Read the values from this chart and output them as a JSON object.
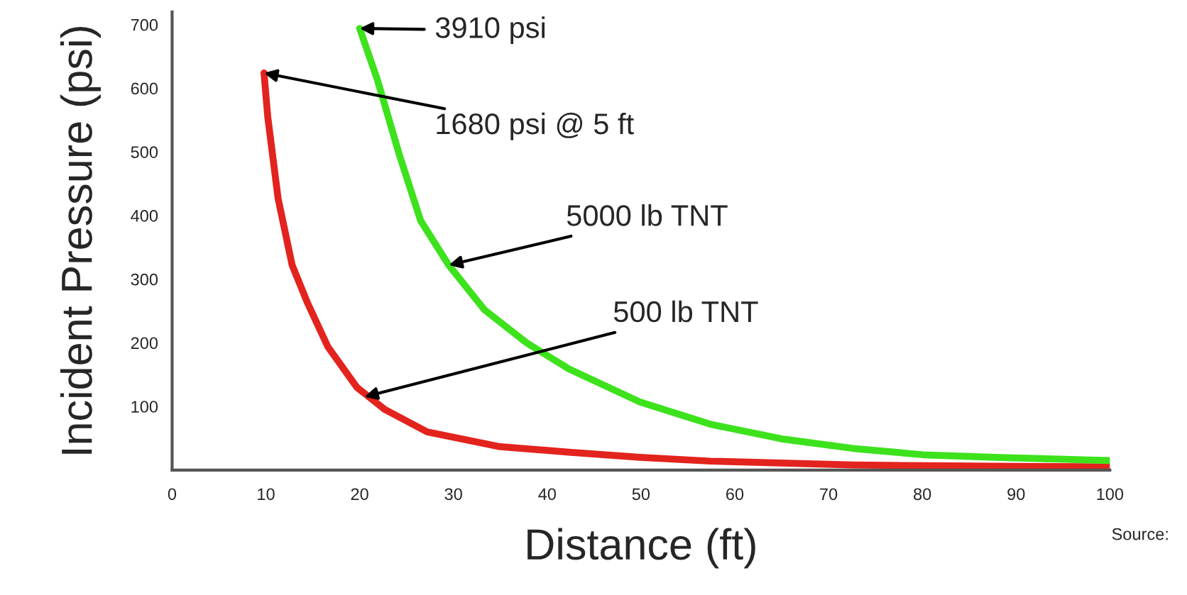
{
  "chart_data": {
    "type": "line",
    "xlabel": "Distance (ft)",
    "ylabel": "Incident Pressure (psi)",
    "xlim": [
      0,
      100
    ],
    "ylim": [
      0,
      720
    ],
    "xticks": [
      0,
      10,
      20,
      30,
      40,
      50,
      60,
      70,
      80,
      90,
      100
    ],
    "yticks": [
      100,
      200,
      300,
      400,
      500,
      600,
      700
    ],
    "grid": false,
    "legend": false,
    "series": [
      {
        "color": "#e3231d",
        "x": [
          9.8,
          10.2,
          11.3,
          12.8,
          14.4,
          16.6,
          19.7,
          22.7,
          27.2,
          34.8,
          42.3,
          49.9,
          57.4,
          72.6,
          87.7,
          100
        ],
        "values": [
          624,
          555,
          427,
          322,
          264,
          194,
          130,
          95,
          60,
          37,
          28,
          20,
          14,
          8,
          6,
          5
        ]
      },
      {
        "color": "#3de21d",
        "x": [
          20,
          21.9,
          24.2,
          26.5,
          29.5,
          33.3,
          37.8,
          42.3,
          49.9,
          57.4,
          65,
          72.6,
          80.1,
          87.7,
          100
        ],
        "values": [
          694,
          613,
          497,
          392,
          322,
          252,
          200,
          159,
          107,
          72,
          49,
          34,
          24,
          20,
          15
        ]
      }
    ],
    "annotations": [
      {
        "text": "3910 psi",
        "x": 20,
        "y": 694
      },
      {
        "text": "1680 psi @ 5 ft",
        "x": 9.8,
        "y": 624
      },
      {
        "text": "5000 lb TNT",
        "x": 29.5,
        "y": 322
      },
      {
        "text": "500 lb TNT",
        "x": 20.5,
        "y": 115
      },
      "Source:"
    ]
  }
}
